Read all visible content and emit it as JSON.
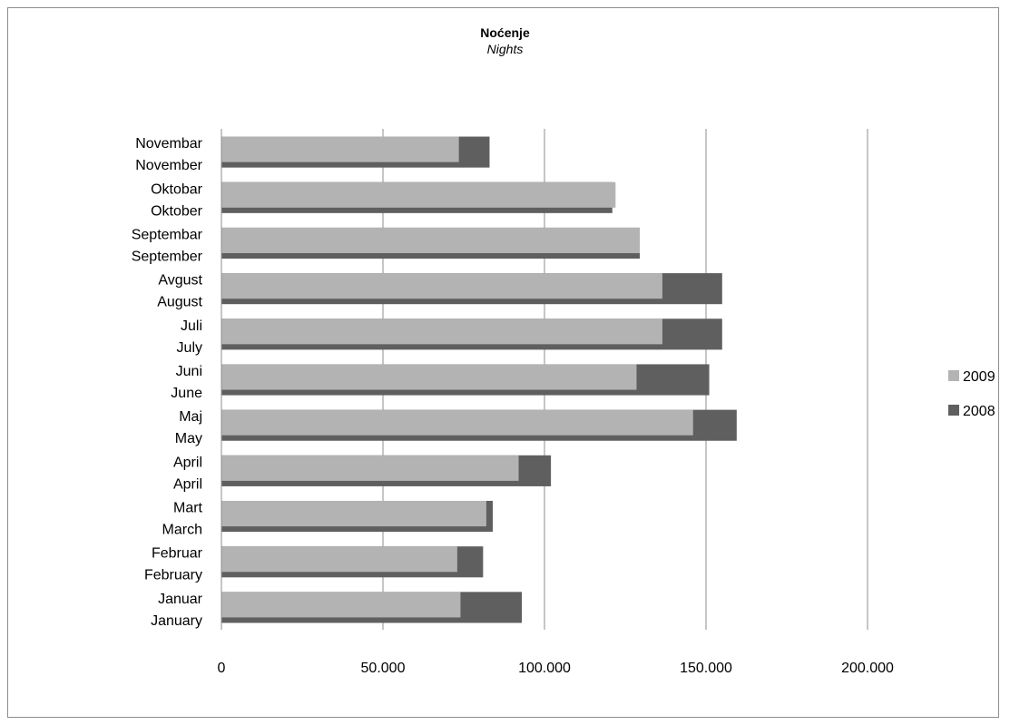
{
  "chart_data": {
    "type": "bar",
    "orientation": "horizontal",
    "title": "Noćenje",
    "subtitle": "Nights",
    "categories": [
      {
        "line1": "Januar",
        "line2": "January"
      },
      {
        "line1": "Februar",
        "line2": "February"
      },
      {
        "line1": "Mart",
        "line2": "March"
      },
      {
        "line1": "April",
        "line2": "April"
      },
      {
        "line1": "Maj",
        "line2": "May"
      },
      {
        "line1": "Juni",
        "line2": "June"
      },
      {
        "line1": "Juli",
        "line2": "July"
      },
      {
        "line1": "Avgust",
        "line2": "August"
      },
      {
        "line1": "Septembar",
        "line2": "September"
      },
      {
        "line1": "Oktobar",
        "line2": "Oktober"
      },
      {
        "line1": "Novembar",
        "line2": "November"
      }
    ],
    "series": [
      {
        "name": "2009",
        "color": "#b3b3b3",
        "values": [
          74000,
          73000,
          82000,
          92000,
          146000,
          128500,
          136500,
          136500,
          129500,
          122000,
          73500
        ]
      },
      {
        "name": "2008",
        "color": "#5f5f5f",
        "values": [
          93000,
          81000,
          84000,
          102000,
          159500,
          151000,
          155000,
          155000,
          129500,
          121000,
          83000
        ]
      }
    ],
    "xlim": [
      0,
      200000
    ],
    "xticks": [
      0,
      50000,
      100000,
      150000,
      200000
    ],
    "xtick_labels": [
      "0",
      "50.000",
      "100.000",
      "150.000",
      "200.000"
    ],
    "grid": true,
    "legend_position": "right",
    "legend_order": [
      "2009",
      "2008"
    ]
  }
}
